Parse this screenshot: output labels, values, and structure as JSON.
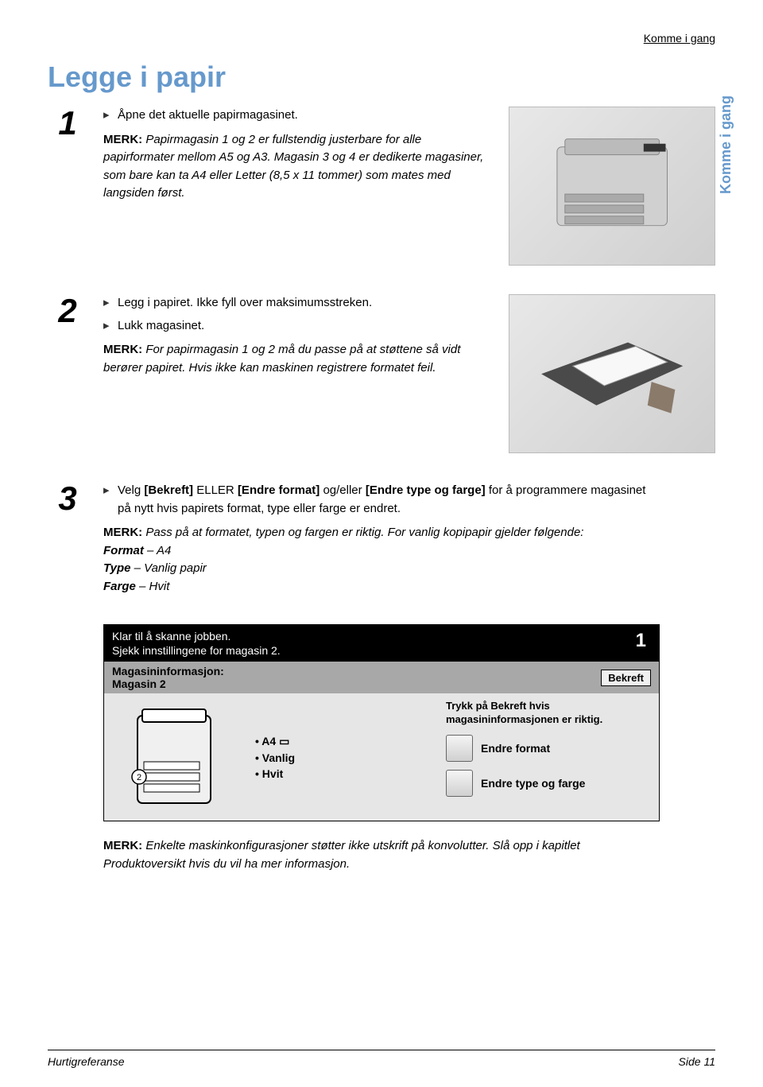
{
  "header": {
    "running_title": "Komme i gang",
    "page_title": "Legge i papir",
    "side_tab": "Komme i gang"
  },
  "steps": [
    {
      "num": "1",
      "bullets": [
        "Åpne det aktuelle papirmagasinet."
      ],
      "note_label": "MERK:",
      "note_body": "Papirmagasin 1 og 2 er fullstendig justerbare for alle papirformater mellom A5 og A3. Magasin 3 og 4 er dedikerte magasiner, som bare kan ta A4 eller Letter (8,5 x 11 tommer) som mates med langsiden først.",
      "img_alt": "printer"
    },
    {
      "num": "2",
      "bullets": [
        "Legg i papiret. Ikke fyll over maksimumsstreken.",
        "Lukk magasinet."
      ],
      "note_label": "MERK:",
      "note_body": "For papirmagasin 1 og 2 må du passe på at støttene så vidt berører papiret. Hvis ikke kan maskinen registrere formatet feil.",
      "img_alt": "tray"
    },
    {
      "num": "3",
      "bullet_html": "Velg <strong>[Bekreft]</strong> ELLER <strong>[Endre format]</strong> og/eller <strong>[Endre type og farge]</strong> for å programmere magasinet på nytt hvis papirets format, type eller farge er endret.",
      "note_label": "MERK:",
      "note_body_html": "Pass på at formatet, typen og fargen er riktig. For vanlig kopipapir gjelder følgende:<br><strong><em>Format</em></strong> <em>– A4</em><br><strong><em>Type</em></strong> <em>– Vanlig papir</em><br><strong><em>Farge</em></strong> <em>– Hvit</em>"
    }
  ],
  "touchscreen": {
    "top_line1": "Klar til å skanne jobben.",
    "top_line2": "Sjekk innstillingene for magasin 2.",
    "top_right": "1",
    "sub_left_line1": "Magasininformasjon:",
    "sub_left_line2": "Magasin 2",
    "confirm_label": "Bekreft",
    "hint": "Trykk på Bekreft hvis magasininformasjonen er riktig.",
    "settings": [
      "A4 ▭",
      "Vanlig",
      "Hvit"
    ],
    "tray_label": "2",
    "buttons": [
      {
        "label": "Endre format"
      },
      {
        "label": "Endre type og farge"
      }
    ]
  },
  "final_note": {
    "label": "MERK:",
    "body": "Enkelte maskinkonfigurasjoner støtter ikke utskrift på konvolutter. Slå opp i kapitlet Produktoversikt hvis du vil ha mer informasjon."
  },
  "footer": {
    "left": "Hurtigreferanse",
    "right": "Side 11"
  },
  "colors": {
    "title": "#6699cc",
    "text": "#000000",
    "bg": "#ffffff",
    "panel_dark": "#000000",
    "panel_mid": "#a8a8a8",
    "panel_light": "#e6e6e6"
  }
}
